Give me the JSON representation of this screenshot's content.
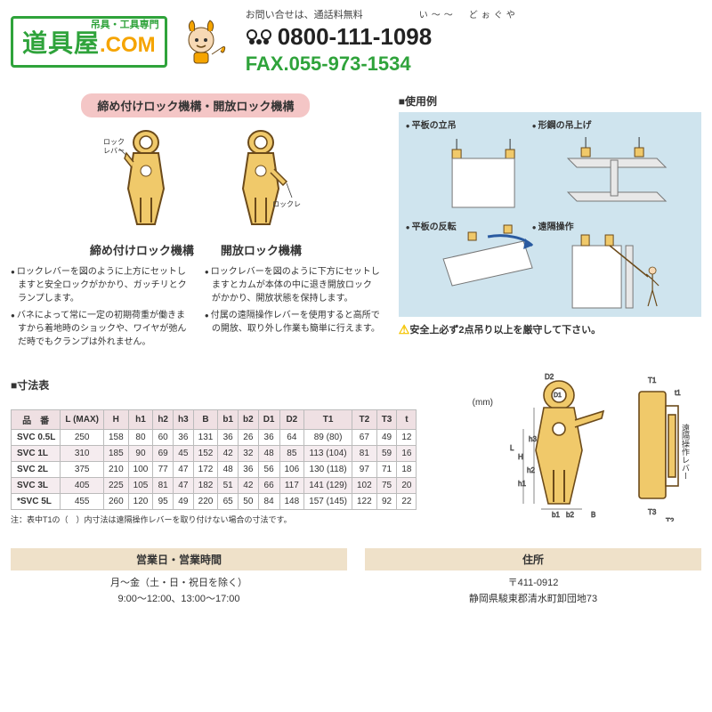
{
  "header": {
    "logo_main": "道具屋",
    "logo_com": ".COM",
    "logo_sub": "吊具・工具専門",
    "contact_label": "お問い合せは、通話料無料",
    "contact_ruby": "い〜〜　どぉぐや",
    "tel": "0800-111-1098",
    "fax": "FAX.055-973-1534"
  },
  "section_title": "締め付けロック機構・開放ロック機構",
  "mechanisms": {
    "left": {
      "illus_label": "ロックレバー",
      "name": "締め付けロック機構",
      "bullets": [
        "ロックレバーを図のように上方にセットしますと安全ロックがかかり、ガッチリとクランプします。",
        "バネによって常に一定の初期荷重が働きますから着地時のショックや、ワイヤが弛んだ時でもクランプは外れません。"
      ]
    },
    "right": {
      "illus_label": "ロックレバー",
      "name": "開放ロック機構",
      "bullets": [
        "ロックレバーを図のように下方にセットしますとカムが本体の中に退き開放ロックがかかり、開放状態を保持します。",
        "付属の遠隔操作レバーを使用すると高所での開放、取り外し作業も簡単に行えます。"
      ]
    }
  },
  "usage": {
    "heading": "■使用例",
    "items": [
      "平板の立吊",
      "形鋼の吊上げ",
      "平板の反転",
      "遠隔操作"
    ],
    "warning": "安全上必ず2点吊り以上を厳守して下さい。"
  },
  "dimensions": {
    "heading": "■寸法表",
    "unit": "(mm)",
    "columns": [
      "品　番",
      "L (MAX)",
      "H",
      "h1",
      "h2",
      "h3",
      "B",
      "b1",
      "b2",
      "D1",
      "D2",
      "T1",
      "T2",
      "T3",
      "t"
    ],
    "rows": [
      [
        "SVC 0.5L",
        "250",
        "158",
        "80",
        "60",
        "36",
        "131",
        "36",
        "26",
        "36",
        "64",
        "89 (80)",
        "67",
        "49",
        "12"
      ],
      [
        "SVC 1L",
        "310",
        "185",
        "90",
        "69",
        "45",
        "152",
        "42",
        "32",
        "48",
        "85",
        "113 (104)",
        "81",
        "59",
        "16"
      ],
      [
        "SVC 2L",
        "375",
        "210",
        "100",
        "77",
        "47",
        "172",
        "48",
        "36",
        "56",
        "106",
        "130 (118)",
        "97",
        "71",
        "18"
      ],
      [
        "SVC 3L",
        "405",
        "225",
        "105",
        "81",
        "47",
        "182",
        "51",
        "42",
        "66",
        "117",
        "141 (129)",
        "102",
        "75",
        "20"
      ],
      [
        "*SVC 5L",
        "455",
        "260",
        "120",
        "95",
        "49",
        "220",
        "65",
        "50",
        "84",
        "148",
        "157 (145)",
        "122",
        "92",
        "22"
      ]
    ],
    "note": "注：表中T1の（　）内寸法は遠隔操作レバーを取り付けない場合の寸法です。",
    "diagram_label": "遠隔操作レバー"
  },
  "footer": {
    "hours_title": "営業日・営業時間",
    "hours_line1": "月〜金（土・日・祝日を除く）",
    "hours_line2": "9:00〜12:00、13:00〜17:00",
    "addr_title": "住所",
    "addr_line1": "〒411-0912",
    "addr_line2": "静岡県駿東郡清水町卸団地73"
  },
  "colors": {
    "brand_green": "#2fa33b",
    "brand_orange": "#f5a400",
    "pill_bg": "#f4c6c6",
    "panel_bg": "#cfe4ee",
    "table_header_bg": "#efe0e3",
    "footer_bar_bg": "#efe1c9",
    "clamp_fill": "#f0c96a",
    "clamp_stroke": "#6b4a1a"
  }
}
